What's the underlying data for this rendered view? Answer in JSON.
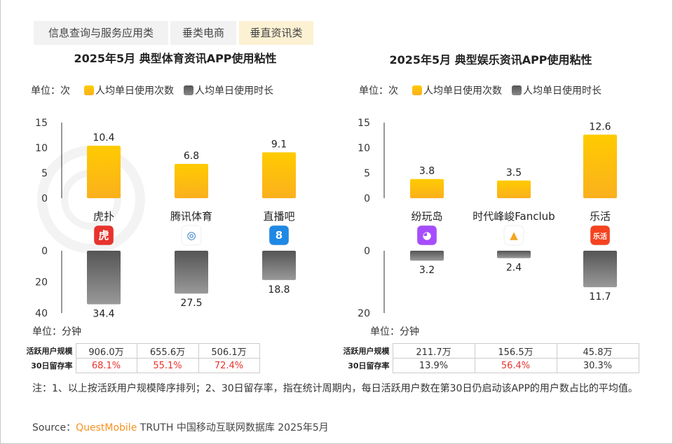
{
  "tabs": [
    {
      "label": "信息查询与服务应用类"
    },
    {
      "label": "垂类电商"
    },
    {
      "label": "垂直资讯类"
    }
  ],
  "watermark": "QUESTMOBILE",
  "legend": {
    "unit_top": "单位：次",
    "unit_bottom": "单位：分钟",
    "freq": "人均单日使用次数",
    "dur": "人均单日使用时长"
  },
  "colors": {
    "freq": "#fbbf0e",
    "dur": "#777777",
    "red": "#e8332d"
  },
  "table_labels": {
    "mau": "活跃用户规模",
    "retention": "30日留存率"
  },
  "chart_data": [
    {
      "type": "bar",
      "title": "2025年5月 典型体育资讯APP使用粘性",
      "categories": [
        "虎扑",
        "腾讯体育",
        "直播吧"
      ],
      "icons": [
        {
          "name": "hupu-icon",
          "glyph": "虎",
          "bg": "#e8332d"
        },
        {
          "name": "tencent-sports-icon",
          "glyph": "◎",
          "bg": "#ffffff"
        },
        {
          "name": "zhibo8-icon",
          "glyph": "8",
          "bg": "#1e88e5"
        }
      ],
      "series": [
        {
          "name": "人均单日使用次数",
          "values": [
            10.4,
            6.8,
            9.1
          ],
          "ylim": [
            0,
            15
          ],
          "ticks": [
            "0",
            "5",
            "10",
            "15"
          ]
        },
        {
          "name": "人均单日使用时长",
          "values": [
            34.4,
            27.5,
            18.8
          ],
          "ylim": [
            0,
            40
          ],
          "ticks": [
            "0",
            "20",
            "40"
          ]
        }
      ],
      "mau": [
        "906.0万",
        "655.6万",
        "506.1万"
      ],
      "retention": [
        "68.1%",
        "55.1%",
        "72.4%"
      ],
      "retention_red": [
        true,
        true,
        true
      ]
    },
    {
      "type": "bar",
      "title": "2025年5月 典型娱乐资讯APP使用粘性",
      "categories": [
        "纷玩岛",
        "时代峰峻Fanclub",
        "乐活"
      ],
      "icons": [
        {
          "name": "fenwandao-icon",
          "glyph": "◕",
          "bg": "#a64dff"
        },
        {
          "name": "tf-fanclub-icon",
          "glyph": "▲",
          "bg": "#ffffff"
        },
        {
          "name": "lehuo-icon",
          "glyph": "乐活",
          "bg": "#f5421f"
        }
      ],
      "series": [
        {
          "name": "人均单日使用次数",
          "values": [
            3.8,
            3.5,
            12.6
          ],
          "ylim": [
            0,
            15
          ],
          "ticks": [
            "0",
            "5",
            "10",
            "15"
          ]
        },
        {
          "name": "人均单日使用时长",
          "values": [
            3.2,
            2.4,
            11.7
          ],
          "ylim": [
            0,
            20
          ],
          "ticks": [
            "0",
            "20"
          ]
        }
      ],
      "mau": [
        "211.7万",
        "156.5万",
        "45.8万"
      ],
      "retention": [
        "13.9%",
        "56.4%",
        "30.3%"
      ],
      "retention_red": [
        false,
        true,
        false
      ]
    }
  ],
  "note": "注：1、以上按活跃用户规模降序排列；2、30日留存率，指在统计周期内，每日活跃用户数在第30日仍启动该APP的用户数占比的平均值。",
  "source": {
    "prefix": "Source：",
    "brand": "QuestMobile",
    "rest": " TRUTH 中国移动互联网数据库 2025年5月"
  }
}
